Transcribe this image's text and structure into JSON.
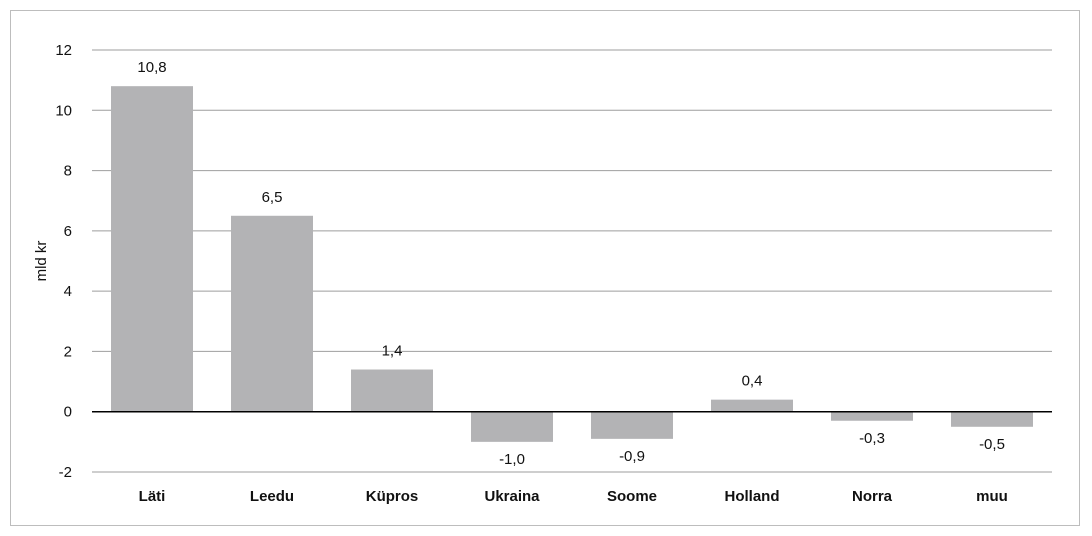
{
  "chart_data": {
    "type": "bar",
    "categories": [
      "Läti",
      "Leedu",
      "Küpros",
      "Ukraina",
      "Soome",
      "Holland",
      "Norra",
      "muu"
    ],
    "values": [
      10.8,
      6.5,
      1.4,
      -1.0,
      -0.9,
      0.4,
      -0.3,
      -0.5
    ],
    "data_labels": [
      "10,8",
      "6,5",
      "1,4",
      "-1,0",
      "-0,9",
      "0,4",
      "-0,3",
      "-0,5"
    ],
    "title": "",
    "xlabel": "",
    "ylabel": "mld kr",
    "ylim": [
      -2,
      12
    ],
    "yticks": [
      -2,
      0,
      2,
      4,
      6,
      8,
      10,
      12
    ],
    "grid": true,
    "bar_color": "#b3b3b5"
  }
}
